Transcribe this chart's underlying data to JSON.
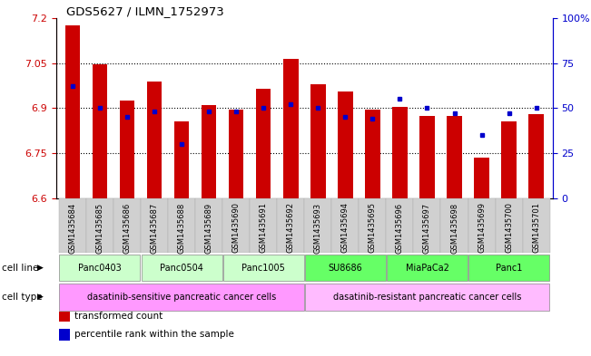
{
  "title": "GDS5627 / ILMN_1752973",
  "samples": [
    "GSM1435684",
    "GSM1435685",
    "GSM1435686",
    "GSM1435687",
    "GSM1435688",
    "GSM1435689",
    "GSM1435690",
    "GSM1435691",
    "GSM1435692",
    "GSM1435693",
    "GSM1435694",
    "GSM1435695",
    "GSM1435696",
    "GSM1435697",
    "GSM1435698",
    "GSM1435699",
    "GSM1435700",
    "GSM1435701"
  ],
  "transformed_counts": [
    7.175,
    7.045,
    6.925,
    6.99,
    6.855,
    6.91,
    6.895,
    6.965,
    7.065,
    6.98,
    6.955,
    6.895,
    6.905,
    6.875,
    6.875,
    6.735,
    6.855,
    6.88
  ],
  "percentile_ranks": [
    62,
    50,
    45,
    48,
    30,
    48,
    48,
    50,
    52,
    50,
    45,
    44,
    55,
    50,
    47,
    35,
    47,
    50
  ],
  "ylim_left": [
    6.6,
    7.2
  ],
  "ylim_right": [
    0,
    100
  ],
  "yticks_left": [
    6.6,
    6.75,
    6.9,
    7.05,
    7.2
  ],
  "yticks_right": [
    0,
    25,
    50,
    75,
    100
  ],
  "ytick_labels_left": [
    "6.6",
    "6.75",
    "6.9",
    "7.05",
    "7.2"
  ],
  "ytick_labels_right": [
    "0",
    "25",
    "50",
    "75",
    "100%"
  ],
  "bar_color": "#cc0000",
  "dot_color": "#0000cc",
  "bar_bottom": 6.6,
  "cell_lines": [
    {
      "label": "Panc0403",
      "start": 0,
      "end": 3,
      "sensitive": true
    },
    {
      "label": "Panc0504",
      "start": 3,
      "end": 6,
      "sensitive": true
    },
    {
      "label": "Panc1005",
      "start": 6,
      "end": 9,
      "sensitive": true
    },
    {
      "label": "SU8686",
      "start": 9,
      "end": 12,
      "sensitive": false
    },
    {
      "label": "MiaPaCa2",
      "start": 12,
      "end": 15,
      "sensitive": false
    },
    {
      "label": "Panc1",
      "start": 15,
      "end": 18,
      "sensitive": false
    }
  ],
  "cell_line_color_sensitive": "#ccffcc",
  "cell_line_color_resistant": "#66ff66",
  "cell_types": [
    {
      "label": "dasatinib-sensitive pancreatic cancer cells",
      "start": 0,
      "end": 9,
      "color": "#ff99ff"
    },
    {
      "label": "dasatinib-resistant pancreatic cancer cells",
      "start": 9,
      "end": 18,
      "color": "#ffbbff"
    }
  ],
  "cell_line_row_label": "cell line",
  "cell_type_row_label": "cell type",
  "legend_items": [
    {
      "color": "#cc0000",
      "marker": "s",
      "label": "transformed count"
    },
    {
      "color": "#0000cc",
      "marker": "s",
      "label": "percentile rank within the sample"
    }
  ]
}
